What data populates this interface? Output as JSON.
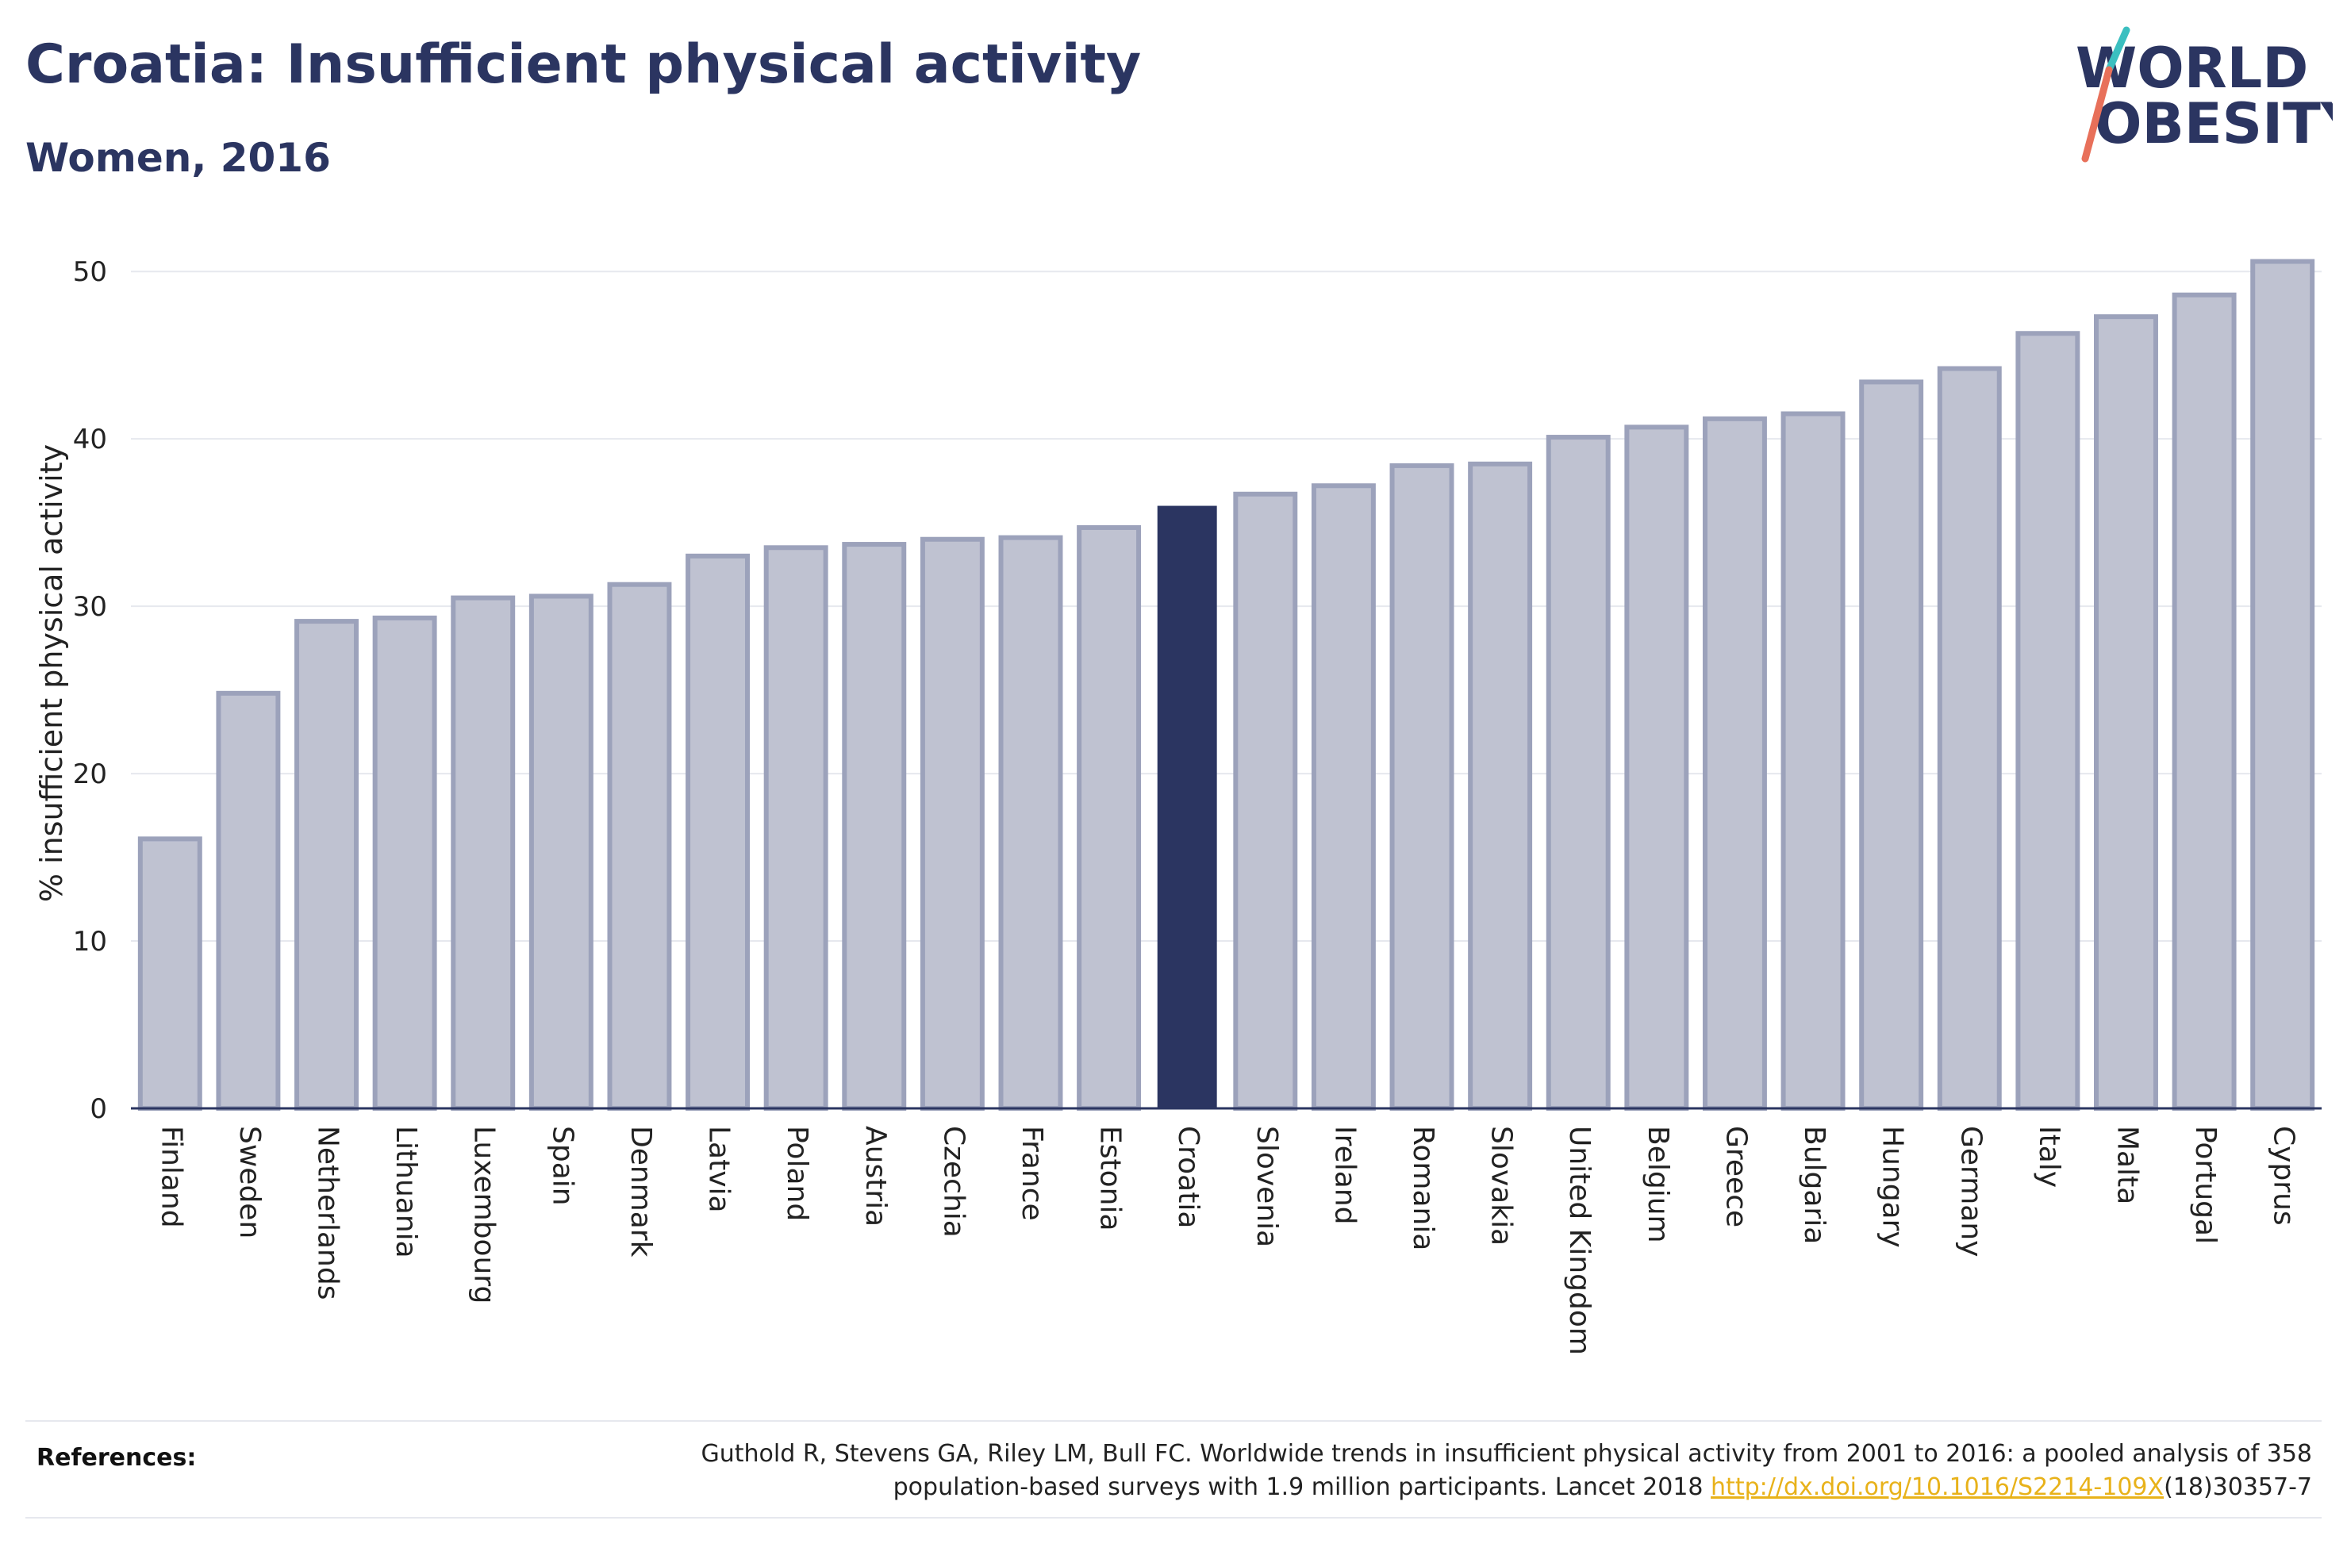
{
  "header": {
    "title": "Croatia: Insufficient physical activity",
    "subtitle": "Women, 2016"
  },
  "logo": {
    "line1": "WORLD",
    "line2": "OBESITY",
    "colors": {
      "text": "#2b3561",
      "slash_teal": "#3bbfc0",
      "slash_coral": "#e8705a"
    }
  },
  "chart_data": {
    "type": "bar",
    "title": "Croatia: Insufficient physical activity",
    "subtitle": "Women, 2016",
    "xlabel": "",
    "ylabel": "% insufficient physical activity",
    "ylim": [
      0,
      52
    ],
    "yticks": [
      0,
      10,
      20,
      30,
      40,
      50
    ],
    "grid": true,
    "highlight": "Croatia",
    "colors": {
      "bar": "#bfc2d1",
      "bar_edge": "#9ca2bb",
      "highlight": "#2b3561",
      "grid": "#e6e8ee",
      "axis": "#2b3561"
    },
    "categories": [
      "Finland",
      "Sweden",
      "Netherlands",
      "Lithuania",
      "Luxembourg",
      "Spain",
      "Denmark",
      "Latvia",
      "Poland",
      "Austria",
      "Czechia",
      "France",
      "Estonia",
      "Croatia",
      "Slovenia",
      "Ireland",
      "Romania",
      "Slovakia",
      "United Kingdom",
      "Belgium",
      "Greece",
      "Bulgaria",
      "Hungary",
      "Germany",
      "Italy",
      "Malta",
      "Portugal",
      "Cyprus"
    ],
    "values": [
      16.1,
      24.8,
      29.1,
      29.3,
      30.5,
      30.6,
      31.3,
      33.0,
      33.5,
      33.7,
      34.0,
      34.1,
      34.7,
      36.0,
      36.7,
      37.2,
      38.4,
      38.5,
      40.1,
      40.7,
      41.2,
      41.5,
      43.4,
      44.2,
      46.3,
      47.3,
      48.6,
      50.6
    ]
  },
  "references": {
    "label": "References:",
    "line1": "Guthold R, Stevens GA, Riley LM, Bull FC. Worldwide trends in insufficient physical activity from 2001 to 2016: a pooled analysis of 358",
    "line2_pre": "population-based surveys with 1.9 million participants. Lancet 2018 ",
    "link": "http://dx.doi.org/10.1016/S2214-109X",
    "line2_post": "(18)30357-7"
  }
}
